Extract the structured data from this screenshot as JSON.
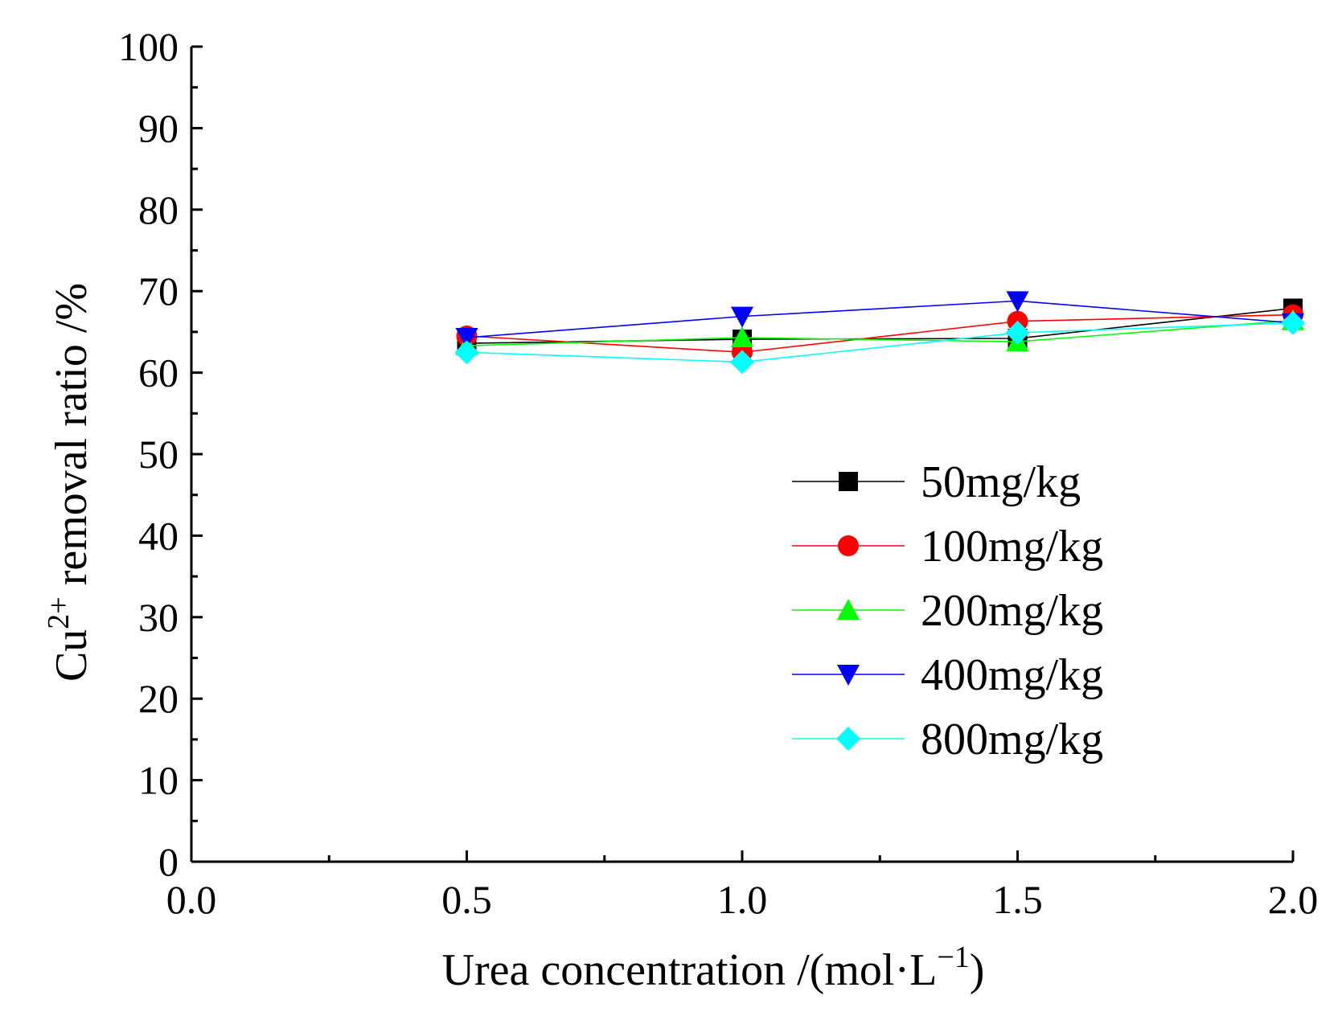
{
  "chart_data": {
    "type": "line",
    "title": "",
    "x": [
      0.5,
      1.0,
      1.5,
      2.0
    ],
    "xlim": [
      0.0,
      2.0
    ],
    "ylim": [
      0,
      100
    ],
    "x_ticks": [
      "0.0",
      "0.5",
      "1.0",
      "1.5",
      "2.0"
    ],
    "y_ticks": [
      "0",
      "10",
      "20",
      "30",
      "40",
      "50",
      "60",
      "70",
      "80",
      "90",
      "100"
    ],
    "x_tick_values": [
      0.0,
      0.5,
      1.0,
      1.5,
      2.0
    ],
    "y_tick_values": [
      0,
      10,
      20,
      30,
      40,
      50,
      60,
      70,
      80,
      90,
      100
    ],
    "xlabel": {
      "main": "Urea concentration /(mol·L",
      "superscript": "−1",
      "suffix": ")"
    },
    "ylabel": {
      "prefix": "Cu",
      "superscript": "2+",
      "main": " removal ratio /%"
    },
    "legend_position": "center-right",
    "grid": false,
    "series": [
      {
        "name": "50mg/kg",
        "color": "#000000",
        "marker": "square",
        "values": [
          63.6,
          64.1,
          64.2,
          67.9
        ]
      },
      {
        "name": "100mg/kg",
        "color": "#ff0000",
        "marker": "circle",
        "values": [
          64.5,
          62.5,
          66.3,
          67.1
        ]
      },
      {
        "name": "200mg/kg",
        "color": "#00ff00",
        "marker": "triangle-up",
        "values": [
          63.3,
          64.3,
          63.8,
          66.4
        ]
      },
      {
        "name": "400mg/kg",
        "color": "#0000ff",
        "marker": "triangle-down",
        "values": [
          64.3,
          66.9,
          68.8,
          66.1
        ]
      },
      {
        "name": "800mg/kg",
        "color": "#00ffff",
        "marker": "diamond",
        "values": [
          62.5,
          61.3,
          64.9,
          66.1
        ]
      }
    ]
  }
}
